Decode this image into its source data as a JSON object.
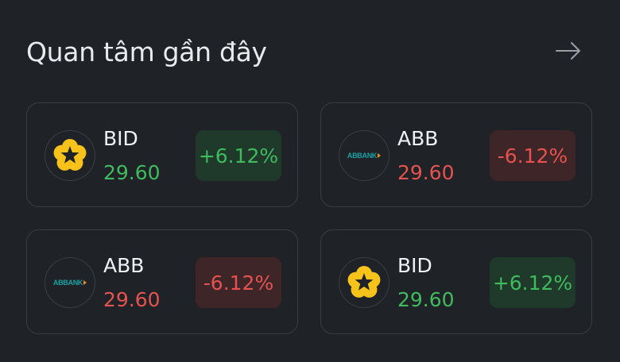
{
  "header": {
    "title": "Quan tâm gần đây"
  },
  "cards": [
    {
      "ticker": "BID",
      "price": "29.60",
      "change": "+6.12%"
    },
    {
      "ticker": "ABB",
      "price": "29.60",
      "change": "-6.12%",
      "logo_text": "ABBANK"
    },
    {
      "ticker": "ABB",
      "price": "29.60",
      "change": "-6.12%",
      "logo_text": "ABBANK"
    },
    {
      "ticker": "BID",
      "price": "29.60",
      "change": "+6.12%"
    }
  ]
}
